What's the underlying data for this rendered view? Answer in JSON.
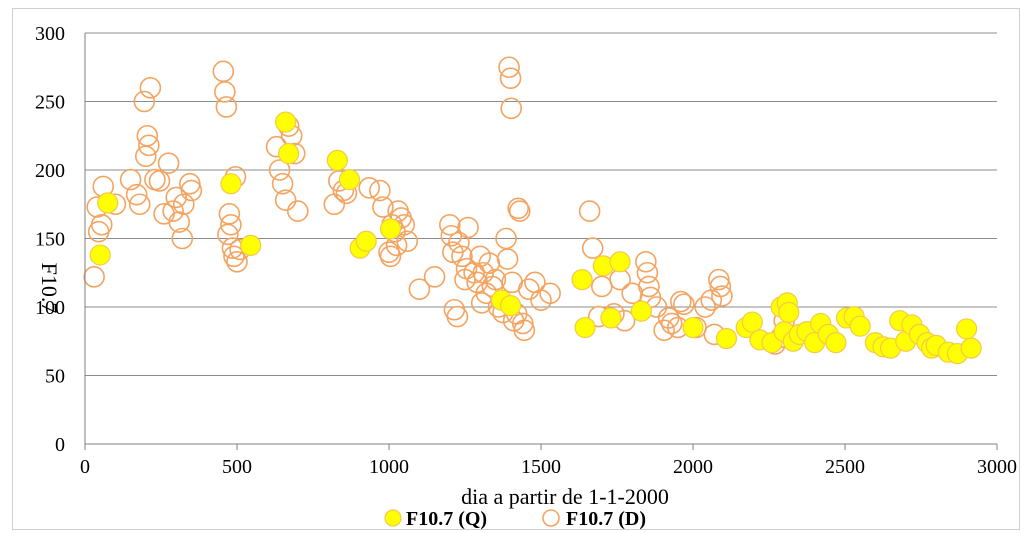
{
  "chart_data": {
    "type": "scatter",
    "xlabel": "dia a partir de 1-1-2000",
    "ylabel": "F10.7",
    "xlim": [
      0,
      3000
    ],
    "ylim": [
      0,
      300
    ],
    "x_ticks": [
      0,
      500,
      1000,
      1500,
      2000,
      2500,
      3000
    ],
    "y_ticks": [
      0,
      50,
      100,
      150,
      200,
      250,
      300
    ],
    "grid": "horizontal",
    "legend_position": "bottom",
    "series": [
      {
        "name": "F10.7 (Q)",
        "marker": "filled-circle",
        "fill": "#FFFF00",
        "stroke": "#F2C94C",
        "points": [
          [
            50,
            138
          ],
          [
            75,
            176
          ],
          [
            480,
            190
          ],
          [
            545,
            145
          ],
          [
            660,
            235
          ],
          [
            670,
            212
          ],
          [
            830,
            207
          ],
          [
            870,
            193
          ],
          [
            905,
            143
          ],
          [
            925,
            148
          ],
          [
            1005,
            157
          ],
          [
            1370,
            105
          ],
          [
            1400,
            101
          ],
          [
            1635,
            120
          ],
          [
            1645,
            85
          ],
          [
            1705,
            130
          ],
          [
            1730,
            92
          ],
          [
            1760,
            133
          ],
          [
            1830,
            97
          ],
          [
            2000,
            85
          ],
          [
            2110,
            77
          ],
          [
            2175,
            85
          ],
          [
            2195,
            89
          ],
          [
            2220,
            76
          ],
          [
            2260,
            74
          ],
          [
            2290,
            100
          ],
          [
            2300,
            82
          ],
          [
            2310,
            103
          ],
          [
            2315,
            96
          ],
          [
            2330,
            75
          ],
          [
            2350,
            80
          ],
          [
            2375,
            82
          ],
          [
            2400,
            74
          ],
          [
            2420,
            88
          ],
          [
            2445,
            80
          ],
          [
            2470,
            74
          ],
          [
            2505,
            92
          ],
          [
            2530,
            93
          ],
          [
            2550,
            86
          ],
          [
            2600,
            74
          ],
          [
            2625,
            71
          ],
          [
            2650,
            70
          ],
          [
            2680,
            90
          ],
          [
            2700,
            75
          ],
          [
            2720,
            87
          ],
          [
            2745,
            80
          ],
          [
            2770,
            74
          ],
          [
            2785,
            70
          ],
          [
            2800,
            72
          ],
          [
            2840,
            67
          ],
          [
            2870,
            66
          ],
          [
            2900,
            84
          ],
          [
            2915,
            70
          ]
        ]
      },
      {
        "name": "F10.7 (D)",
        "marker": "open-circle",
        "fill": "none",
        "stroke": "#F4A460",
        "points": [
          [
            30,
            122
          ],
          [
            40,
            173
          ],
          [
            45,
            155
          ],
          [
            55,
            160
          ],
          [
            60,
            188
          ],
          [
            100,
            175
          ],
          [
            150,
            193
          ],
          [
            170,
            182
          ],
          [
            180,
            175
          ],
          [
            195,
            250
          ],
          [
            200,
            210
          ],
          [
            205,
            225
          ],
          [
            210,
            218
          ],
          [
            215,
            260
          ],
          [
            230,
            193
          ],
          [
            245,
            192
          ],
          [
            260,
            168
          ],
          [
            275,
            205
          ],
          [
            290,
            170
          ],
          [
            300,
            180
          ],
          [
            310,
            162
          ],
          [
            320,
            150
          ],
          [
            325,
            175
          ],
          [
            345,
            190
          ],
          [
            350,
            185
          ],
          [
            455,
            272
          ],
          [
            460,
            257
          ],
          [
            465,
            246
          ],
          [
            470,
            153
          ],
          [
            475,
            168
          ],
          [
            480,
            160
          ],
          [
            485,
            143
          ],
          [
            490,
            137
          ],
          [
            495,
            195
          ],
          [
            500,
            133
          ],
          [
            510,
            142
          ],
          [
            630,
            217
          ],
          [
            640,
            200
          ],
          [
            650,
            190
          ],
          [
            660,
            178
          ],
          [
            670,
            232
          ],
          [
            680,
            225
          ],
          [
            690,
            212
          ],
          [
            700,
            170
          ],
          [
            820,
            175
          ],
          [
            835,
            192
          ],
          [
            850,
            185
          ],
          [
            860,
            183
          ],
          [
            935,
            187
          ],
          [
            970,
            185
          ],
          [
            980,
            173
          ],
          [
            1000,
            140
          ],
          [
            1005,
            137
          ],
          [
            1010,
            160
          ],
          [
            1020,
            155
          ],
          [
            1025,
            145
          ],
          [
            1030,
            170
          ],
          [
            1040,
            165
          ],
          [
            1050,
            160
          ],
          [
            1060,
            148
          ],
          [
            1100,
            113
          ],
          [
            1150,
            122
          ],
          [
            1200,
            160
          ],
          [
            1205,
            152
          ],
          [
            1210,
            140
          ],
          [
            1215,
            98
          ],
          [
            1225,
            93
          ],
          [
            1230,
            147
          ],
          [
            1240,
            137
          ],
          [
            1250,
            120
          ],
          [
            1255,
            128
          ],
          [
            1260,
            158
          ],
          [
            1280,
            125
          ],
          [
            1290,
            118
          ],
          [
            1300,
            137
          ],
          [
            1305,
            103
          ],
          [
            1310,
            125
          ],
          [
            1320,
            110
          ],
          [
            1330,
            132
          ],
          [
            1340,
            115
          ],
          [
            1350,
            120
          ],
          [
            1360,
            100
          ],
          [
            1375,
            96
          ],
          [
            1385,
            150
          ],
          [
            1390,
            135
          ],
          [
            1395,
            275
          ],
          [
            1400,
            267
          ],
          [
            1402,
            245
          ],
          [
            1405,
            118
          ],
          [
            1410,
            90
          ],
          [
            1420,
            95
          ],
          [
            1425,
            172
          ],
          [
            1430,
            170
          ],
          [
            1440,
            88
          ],
          [
            1445,
            83
          ],
          [
            1460,
            113
          ],
          [
            1480,
            118
          ],
          [
            1500,
            105
          ],
          [
            1530,
            110
          ],
          [
            1660,
            170
          ],
          [
            1670,
            143
          ],
          [
            1690,
            93
          ],
          [
            1700,
            115
          ],
          [
            1740,
            95
          ],
          [
            1760,
            120
          ],
          [
            1775,
            90
          ],
          [
            1800,
            110
          ],
          [
            1845,
            133
          ],
          [
            1850,
            125
          ],
          [
            1855,
            115
          ],
          [
            1860,
            107
          ],
          [
            1880,
            100
          ],
          [
            1905,
            83
          ],
          [
            1920,
            92
          ],
          [
            1930,
            88
          ],
          [
            1950,
            85
          ],
          [
            1960,
            104
          ],
          [
            1970,
            102
          ],
          [
            2010,
            85
          ],
          [
            2040,
            100
          ],
          [
            2060,
            105
          ],
          [
            2070,
            80
          ],
          [
            2085,
            120
          ],
          [
            2090,
            115
          ],
          [
            2095,
            108
          ],
          [
            2270,
            73
          ],
          [
            2290,
            78
          ],
          [
            2300,
            90
          ]
        ]
      }
    ]
  }
}
